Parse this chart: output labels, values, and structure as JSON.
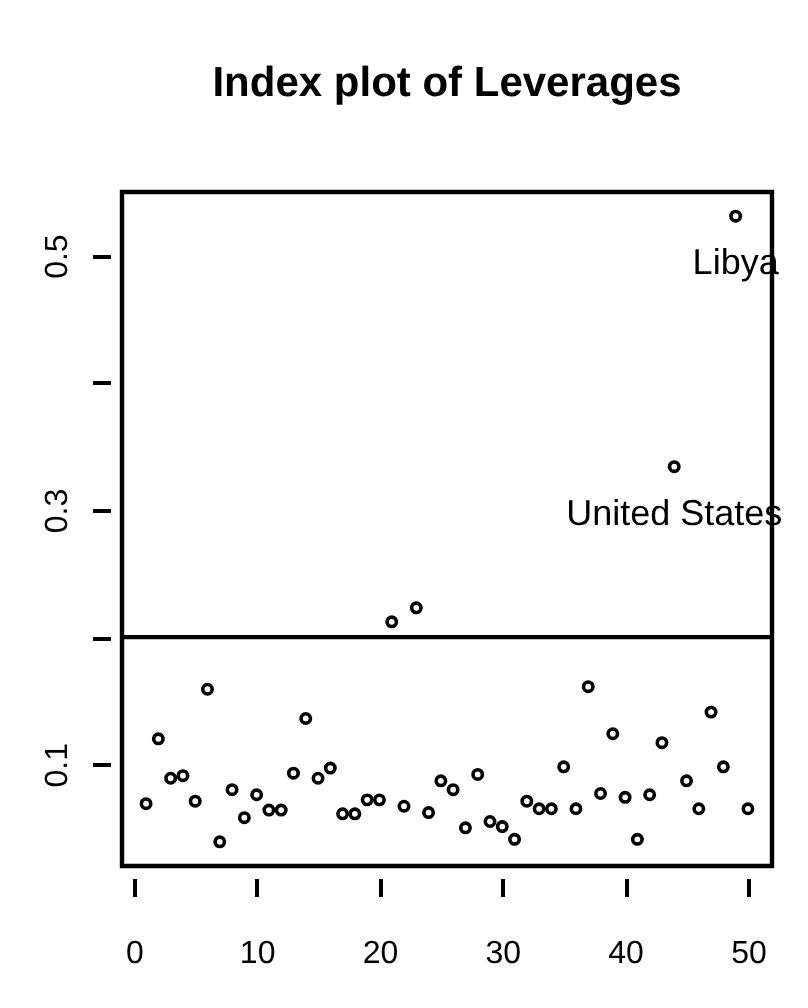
{
  "chart_data": {
    "type": "scatter",
    "title": "Index plot of Leverages",
    "x": [
      1,
      2,
      3,
      4,
      5,
      6,
      7,
      8,
      9,
      10,
      11,
      12,
      13,
      14,
      15,
      16,
      17,
      18,
      19,
      20,
      21,
      22,
      23,
      24,
      25,
      26,
      27,
      28,
      29,
      30,
      31,
      32,
      33,
      34,
      35,
      36,
      37,
      38,
      39,
      40,
      41,
      42,
      43,
      44,
      45,
      46,
      47,
      48,
      49,
      50
    ],
    "values": [
      0.069,
      0.12,
      0.089,
      0.091,
      0.071,
      0.159,
      0.039,
      0.08,
      0.058,
      0.076,
      0.064,
      0.064,
      0.093,
      0.136,
      0.089,
      0.097,
      0.061,
      0.061,
      0.072,
      0.072,
      0.212,
      0.067,
      0.223,
      0.062,
      0.087,
      0.08,
      0.05,
      0.092,
      0.055,
      0.051,
      0.041,
      0.071,
      0.065,
      0.065,
      0.098,
      0.065,
      0.161,
      0.077,
      0.124,
      0.074,
      0.041,
      0.076,
      0.117,
      0.334,
      0.087,
      0.065,
      0.141,
      0.098,
      0.531,
      0.065
    ],
    "color": "#000000",
    "marker": "circle",
    "xlim": [
      -0.96,
      51.96
    ],
    "ylim": [
      0.02,
      0.55
    ],
    "xticks": [
      0,
      10,
      20,
      30,
      40,
      50
    ],
    "yticks": [
      0.1,
      {
        "value": 0.2,
        "label": null
      },
      0.3,
      {
        "value": 0.4,
        "label": null
      },
      0.5
    ],
    "ref_lines": [
      {
        "axis": "y",
        "value": 0.2,
        "color": "#000000"
      }
    ],
    "annotations": [
      {
        "text": "Libya",
        "x": 49,
        "y": 0.531
      },
      {
        "text": "United States",
        "x": 44,
        "y": 0.334
      }
    ]
  }
}
